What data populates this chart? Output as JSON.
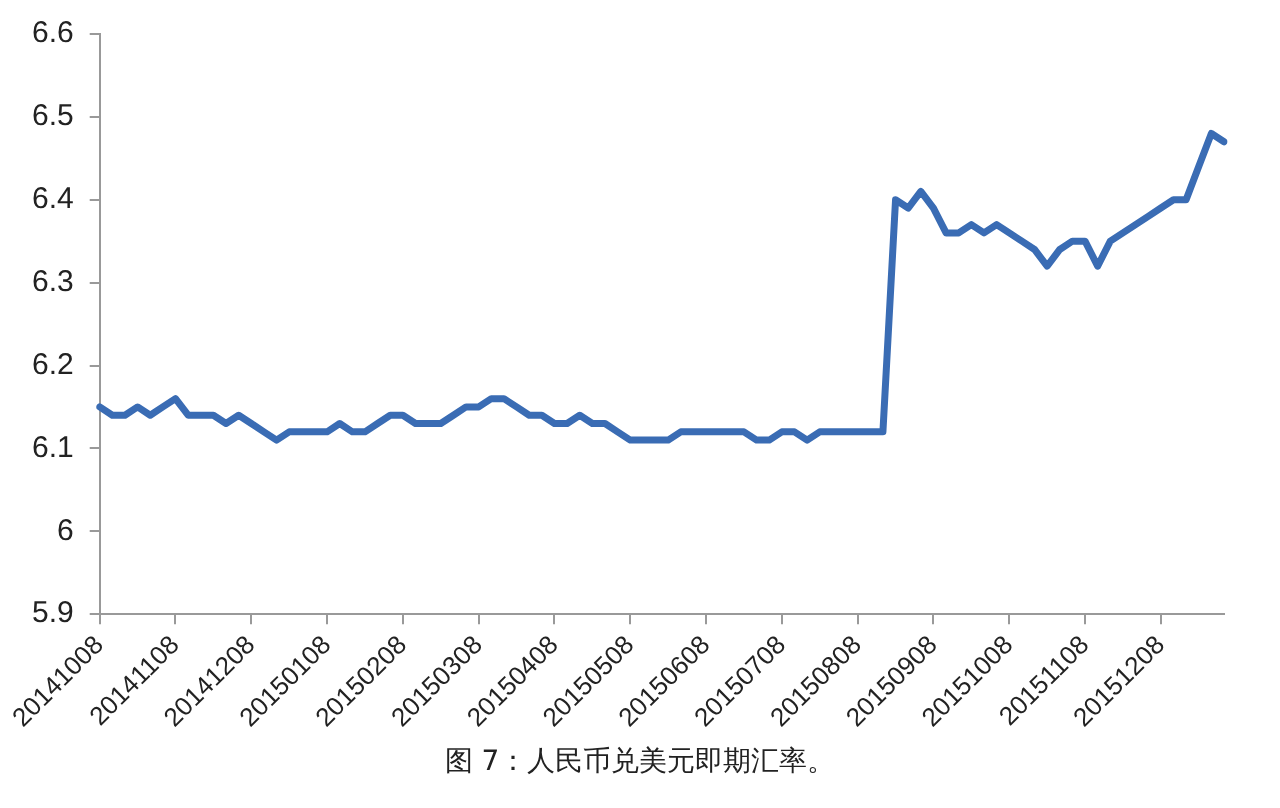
{
  "chart_data": {
    "type": "line",
    "categories": [
      "20141008",
      null,
      null,
      null,
      null,
      null,
      "20141108",
      null,
      null,
      null,
      null,
      null,
      "20141208",
      null,
      null,
      null,
      null,
      null,
      "20150108",
      null,
      null,
      null,
      null,
      null,
      "20150208",
      null,
      null,
      null,
      null,
      null,
      "20150308",
      null,
      null,
      null,
      null,
      null,
      "20150408",
      null,
      null,
      null,
      null,
      null,
      "20150508",
      null,
      null,
      null,
      null,
      null,
      "20150608",
      null,
      null,
      null,
      null,
      null,
      "20150708",
      null,
      null,
      null,
      null,
      null,
      "20150808",
      null,
      null,
      null,
      null,
      null,
      "20150908",
      null,
      null,
      null,
      null,
      null,
      "20151008",
      null,
      null,
      null,
      null,
      null,
      "20151108",
      null,
      null,
      null,
      null,
      null,
      "20151208",
      null,
      null,
      null,
      null,
      null
    ],
    "series": [
      {
        "color": "#3a6cb4",
        "values": [
          6.15,
          6.14,
          6.14,
          6.15,
          6.14,
          6.15,
          6.16,
          6.14,
          6.14,
          6.14,
          6.13,
          6.14,
          6.13,
          6.12,
          6.11,
          6.12,
          6.12,
          6.12,
          6.12,
          6.13,
          6.12,
          6.12,
          6.13,
          6.14,
          6.14,
          6.13,
          6.13,
          6.13,
          6.14,
          6.15,
          6.15,
          6.16,
          6.16,
          6.15,
          6.14,
          6.14,
          6.13,
          6.13,
          6.14,
          6.13,
          6.13,
          6.12,
          6.11,
          6.11,
          6.11,
          6.11,
          6.12,
          6.12,
          6.12,
          6.12,
          6.12,
          6.12,
          6.11,
          6.11,
          6.12,
          6.12,
          6.11,
          6.12,
          6.12,
          6.12,
          6.12,
          6.12,
          6.12,
          6.4,
          6.39,
          6.41,
          6.39,
          6.36,
          6.36,
          6.37,
          6.36,
          6.37,
          6.36,
          6.35,
          6.34,
          6.32,
          6.34,
          6.35,
          6.35,
          6.32,
          6.35,
          6.36,
          6.37,
          6.38,
          6.39,
          6.4,
          6.4,
          6.44,
          6.48,
          6.47
        ]
      }
    ],
    "ylim": [
      5.9,
      6.6
    ],
    "yticks": [
      5.9,
      6,
      6.1,
      6.2,
      6.3,
      6.4,
      6.5,
      6.6
    ],
    "grid": false,
    "legend": false,
    "marker": "none",
    "line_style": "solid",
    "annotations": [
      "图 7：人民币兑美元即期汇率。"
    ]
  }
}
